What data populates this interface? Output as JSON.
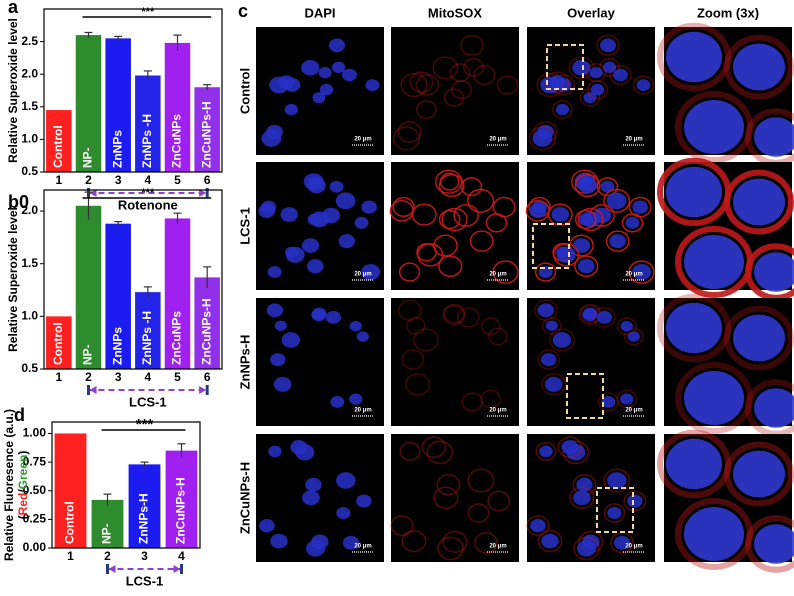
{
  "chart_data": [
    {
      "type": "bar",
      "panel_label": "a",
      "y_label": "Relative Superoxide level",
      "categories": [
        "1",
        "2",
        "3",
        "4",
        "5",
        "6"
      ],
      "bar_labels": [
        "Control",
        "NP-",
        "ZnNPs",
        "ZnNPs -H",
        "ZnCuNPs",
        "ZnCuNPs-H"
      ],
      "values": [
        1.45,
        2.6,
        2.55,
        1.98,
        2.48,
        1.8
      ],
      "errors": [
        null,
        0.04,
        0.03,
        0.07,
        0.12,
        0.04
      ],
      "colors": [
        "#ff2020",
        "#2e8b2e",
        "#1c1cf0",
        "#2424e8",
        "#a020f0",
        "#9030e8"
      ],
      "ylim": [
        0.5,
        3.0
      ],
      "yticks": [
        {
          "value": 0.5,
          "label": "0.5"
        },
        {
          "value": 1.0,
          "label": "1.0"
        },
        {
          "value": 1.5,
          "label": "1.5"
        },
        {
          "value": 2.0,
          "label": "2.0"
        },
        {
          "value": 2.5,
          "label": "2.5"
        }
      ],
      "significance": "***",
      "group_label": "Rotenone"
    },
    {
      "type": "bar",
      "panel_label": "b0",
      "y_label": "Relative Superoxide level",
      "categories": [
        "1",
        "2",
        "3",
        "4",
        "5",
        "6"
      ],
      "bar_labels": [
        "Control",
        "NP-",
        "ZnNPs",
        "ZnNPs -H",
        "ZnCuNPs",
        "ZnCuNPs-H"
      ],
      "values": [
        1.0,
        2.05,
        1.88,
        1.23,
        1.93,
        1.37
      ],
      "errors": [
        null,
        0.13,
        0.02,
        0.05,
        0.05,
        0.1
      ],
      "colors": [
        "#ff2020",
        "#2e8b2e",
        "#1c1cf0",
        "#2424e8",
        "#a020f0",
        "#9030e8"
      ],
      "ylim": [
        0.5,
        2.2
      ],
      "yticks": [
        {
          "value": 0.5,
          "label": "0.5"
        },
        {
          "value": 1.0,
          "label": "1.0"
        },
        {
          "value": 1.5,
          "label": "1.5"
        },
        {
          "value": 2.0,
          "label": "2.0"
        }
      ],
      "significance": "***",
      "group_label": "LCS-1"
    },
    {
      "type": "bar",
      "panel_label": "d",
      "y_label": "Relative Fluoresence (a.u.)",
      "y_label_red": "Red",
      "y_label_green": "Green",
      "categories": [
        "1",
        "2",
        "3",
        "4"
      ],
      "bar_labels": [
        "Control",
        "NP-",
        "ZnNPs-H",
        "ZnCuNPs-H"
      ],
      "values": [
        1.0,
        0.42,
        0.73,
        0.85
      ],
      "errors": [
        null,
        0.05,
        0.02,
        0.06
      ],
      "colors": [
        "#ff2020",
        "#2e8b2e",
        "#1c1cf0",
        "#a020f0"
      ],
      "ylim": [
        0,
        1.1
      ],
      "yticks": [
        {
          "value": 0,
          "label": "0.00"
        },
        {
          "value": 0.25,
          "label": "0.25"
        },
        {
          "value": 0.5,
          "label": "0.50"
        },
        {
          "value": 0.75,
          "label": "0.75"
        },
        {
          "value": 1.0,
          "label": "1.00"
        }
      ],
      "significance": "***",
      "group_label": "LCS-1"
    }
  ],
  "panel_c": {
    "panel_label": "c",
    "columns": [
      "DAPI",
      "MitoSOX",
      "Overlay",
      "Zoom (3x)"
    ],
    "rows": [
      "Control",
      "LCS-1",
      "ZnNPs-H",
      "ZnCuNPs-H"
    ],
    "scale_bar": "20 μm"
  }
}
